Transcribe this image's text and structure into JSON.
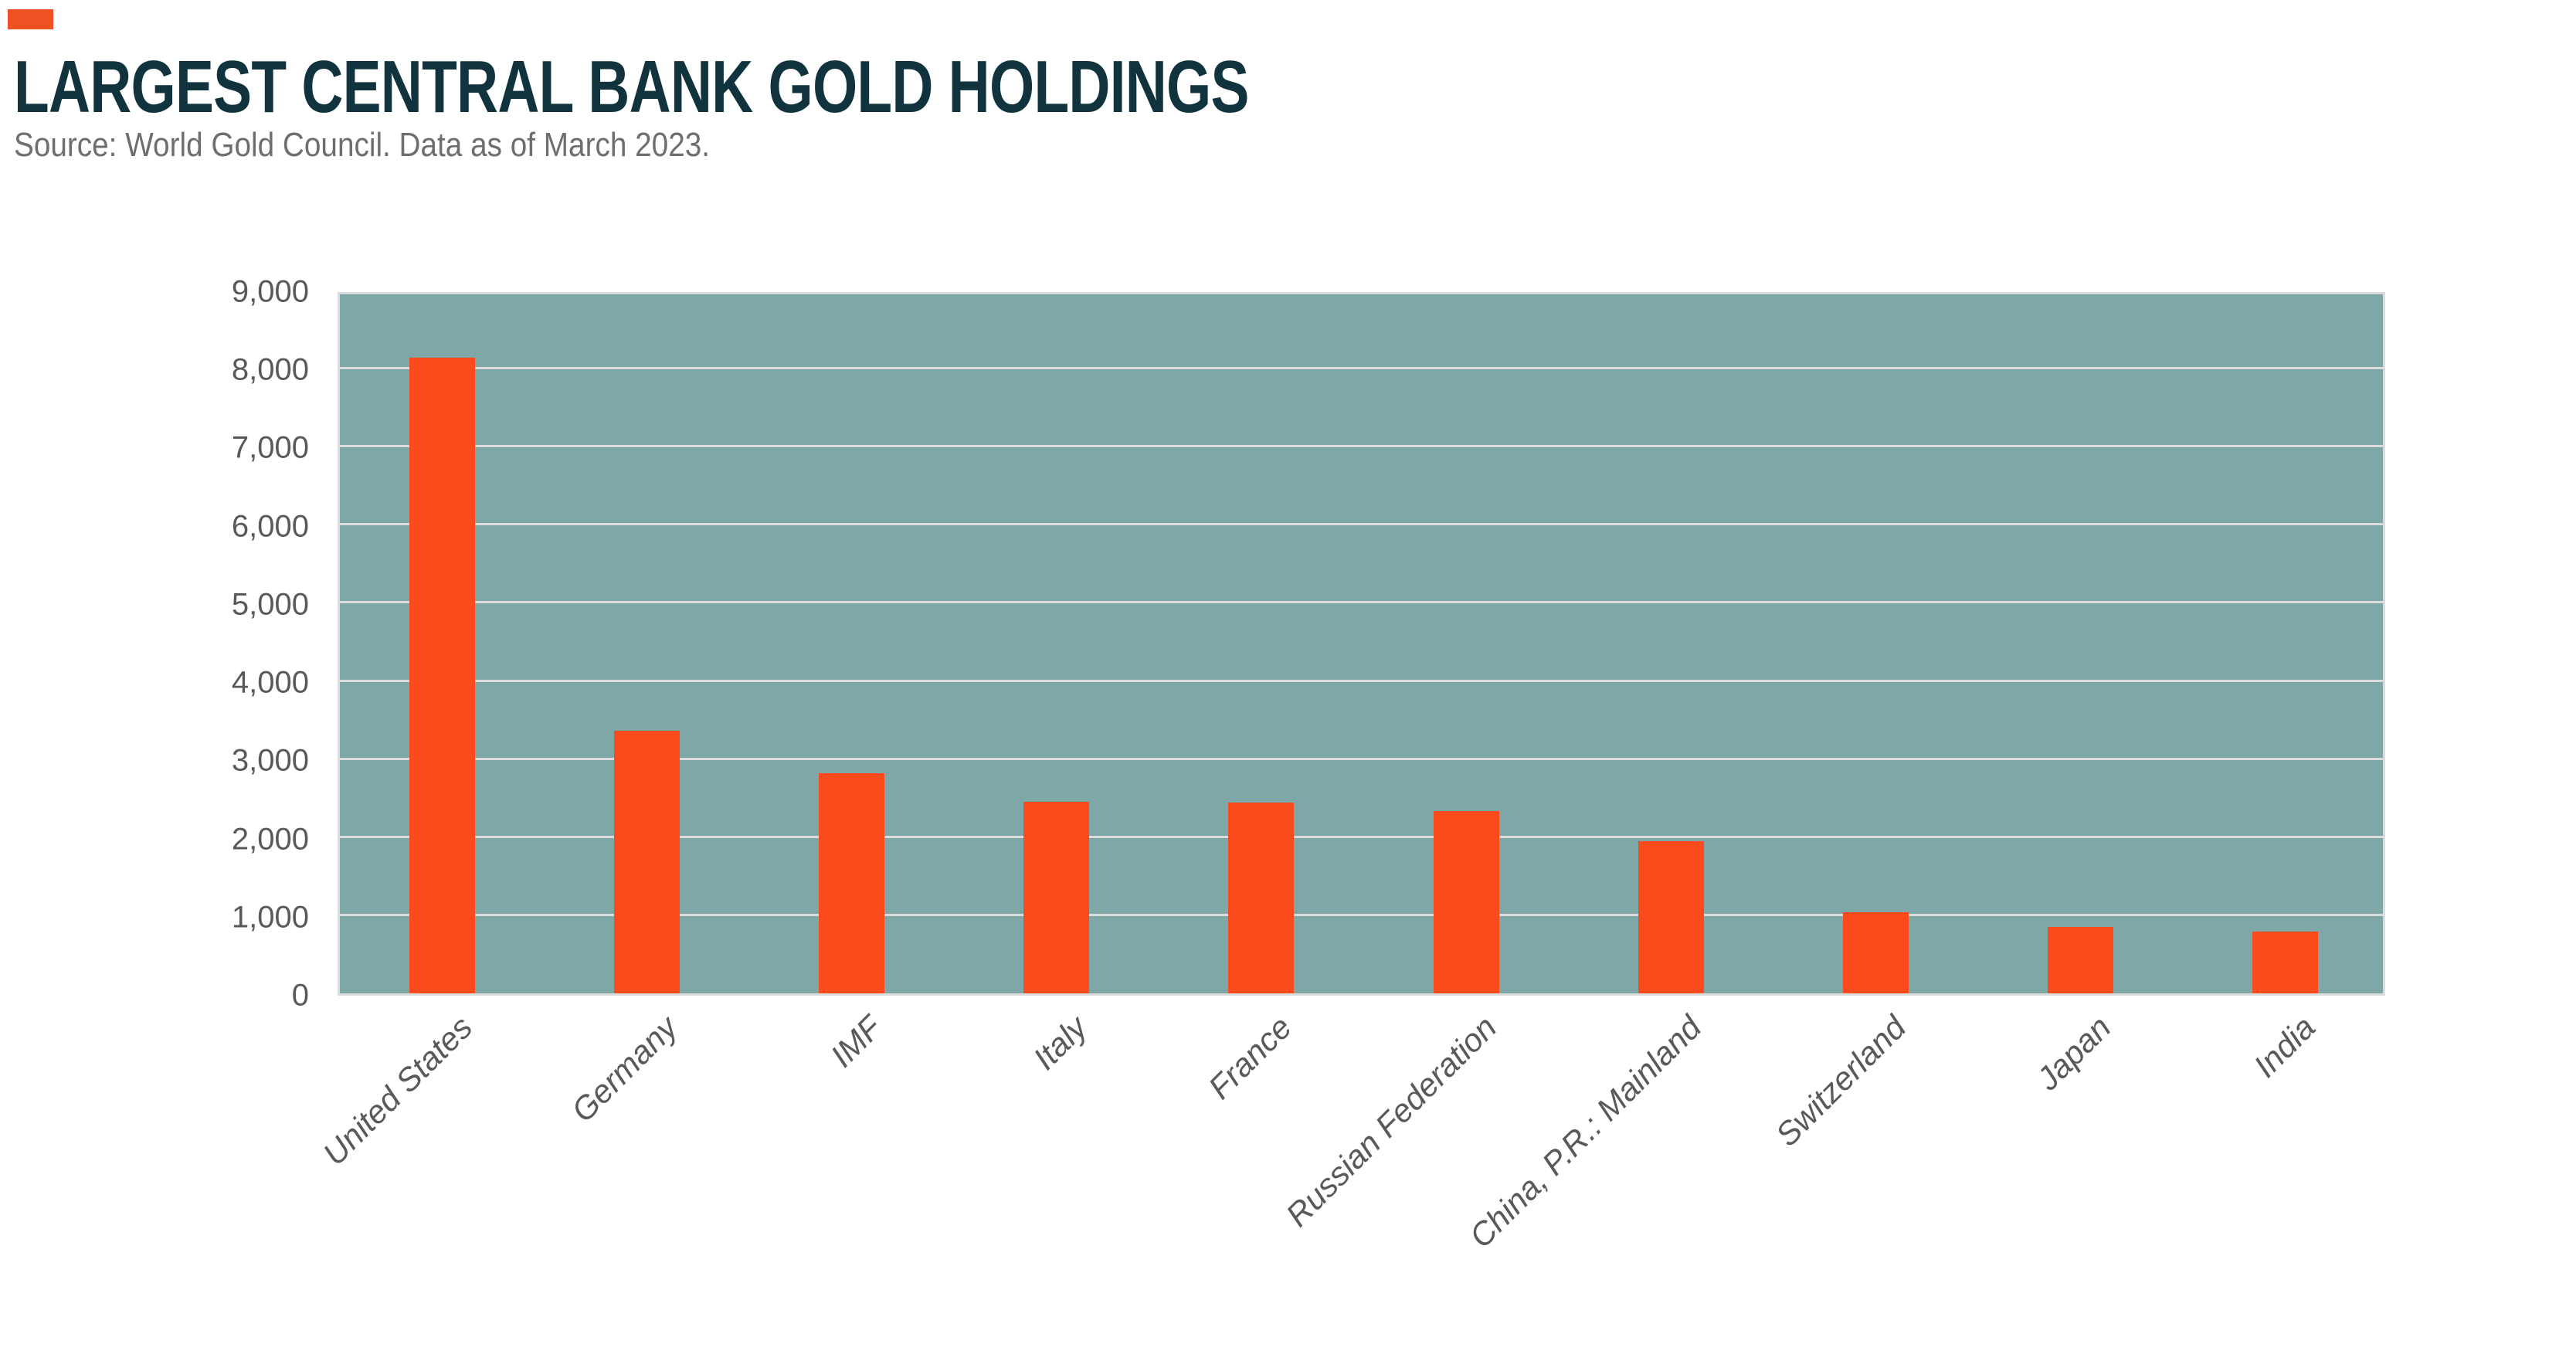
{
  "header": {
    "title": "LARGEST CENTRAL BANK GOLD HOLDINGS",
    "source": "Source: World Gold Council. Data as of March 2023."
  },
  "colors": {
    "accent": "#F05123",
    "bar": "#FB4A1C",
    "plot_background": "#7EA7A8",
    "gridline": "#DCDCDC",
    "title_text": "#11333E",
    "muted_text": "#6D6E70",
    "axis_text": "#58595B"
  },
  "chart_data": {
    "type": "bar",
    "title": "LARGEST CENTRAL BANK GOLD HOLDINGS",
    "source": "Source: World Gold Council. Data as of March 2023.",
    "categories": [
      "United States",
      "Germany",
      "IMF",
      "Italy",
      "France",
      "Russian Federation",
      "China, P.R.: Mainland",
      "Switzerland",
      "Japan",
      "India"
    ],
    "values": [
      8133,
      3355,
      2814,
      2452,
      2437,
      2327,
      1948,
      1040,
      846,
      795
    ],
    "xlabel": "",
    "ylabel": "",
    "ylim": [
      0,
      9000
    ],
    "ytick_step": 1000,
    "ytick_labels": [
      "0",
      "1,000",
      "2,000",
      "3,000",
      "4,000",
      "5,000",
      "6,000",
      "7,000",
      "8,000",
      "9,000"
    ],
    "grid": "horizontal",
    "legend_position": "none"
  }
}
